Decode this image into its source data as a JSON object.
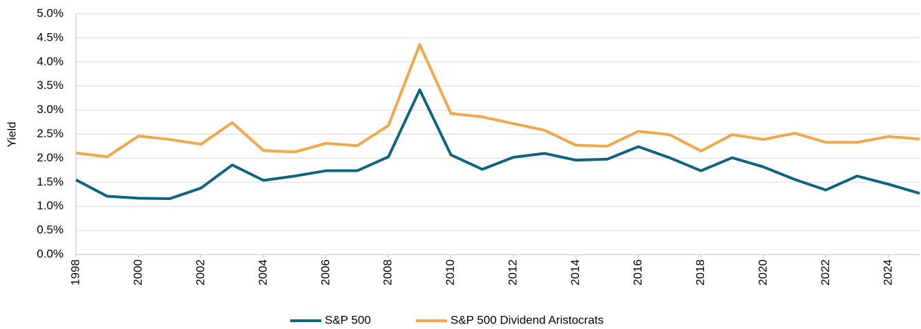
{
  "chart_data": {
    "type": "line",
    "ylabel": "Yield",
    "x": [
      1998,
      1999,
      2000,
      2001,
      2002,
      2003,
      2004,
      2005,
      2006,
      2007,
      2008,
      2009,
      2010,
      2011,
      2012,
      2013,
      2014,
      2015,
      2016,
      2017,
      2018,
      2019,
      2020,
      2021,
      2022,
      2023,
      2024,
      2025
    ],
    "series": [
      {
        "name": "S&P 500",
        "color": "#0f6580",
        "values": [
          1.55,
          1.21,
          1.17,
          1.16,
          1.38,
          1.86,
          1.54,
          1.63,
          1.74,
          1.74,
          2.03,
          3.42,
          2.07,
          1.77,
          2.02,
          2.1,
          1.96,
          1.98,
          2.24,
          2.01,
          1.74,
          2.01,
          1.82,
          1.56,
          1.34,
          1.63,
          1.46,
          1.27
        ]
      },
      {
        "name": "S&P 500 Dividend Aristocrats",
        "color": "#f2a748",
        "values": [
          2.11,
          2.03,
          2.46,
          2.39,
          2.29,
          2.74,
          2.16,
          2.13,
          2.31,
          2.26,
          2.68,
          4.36,
          2.93,
          2.86,
          2.72,
          2.58,
          2.27,
          2.25,
          2.56,
          2.49,
          2.15,
          2.49,
          2.39,
          2.52,
          2.33,
          2.33,
          2.45,
          2.4
        ]
      }
    ],
    "xlim": [
      1998,
      2025
    ],
    "xticks": [
      1998,
      2000,
      2002,
      2004,
      2006,
      2008,
      2010,
      2012,
      2014,
      2016,
      2018,
      2020,
      2022,
      2024
    ],
    "ylim": [
      0,
      5
    ],
    "yticks": [
      {
        "value": 0,
        "label": "0.0%"
      },
      {
        "value": 0.5,
        "label": "0.5%"
      },
      {
        "value": 1,
        "label": "1.0%"
      },
      {
        "value": 1.5,
        "label": "1.5%"
      },
      {
        "value": 2,
        "label": "2.0%"
      },
      {
        "value": 2.5,
        "label": "2.5%"
      },
      {
        "value": 3,
        "label": "3.0%"
      },
      {
        "value": 3.5,
        "label": "3.5%"
      },
      {
        "value": 4,
        "label": "4.0%"
      },
      {
        "value": 4.5,
        "label": "4.5%"
      },
      {
        "value": 5,
        "label": "5.0%"
      }
    ],
    "grid": true,
    "legend": "bottom"
  }
}
